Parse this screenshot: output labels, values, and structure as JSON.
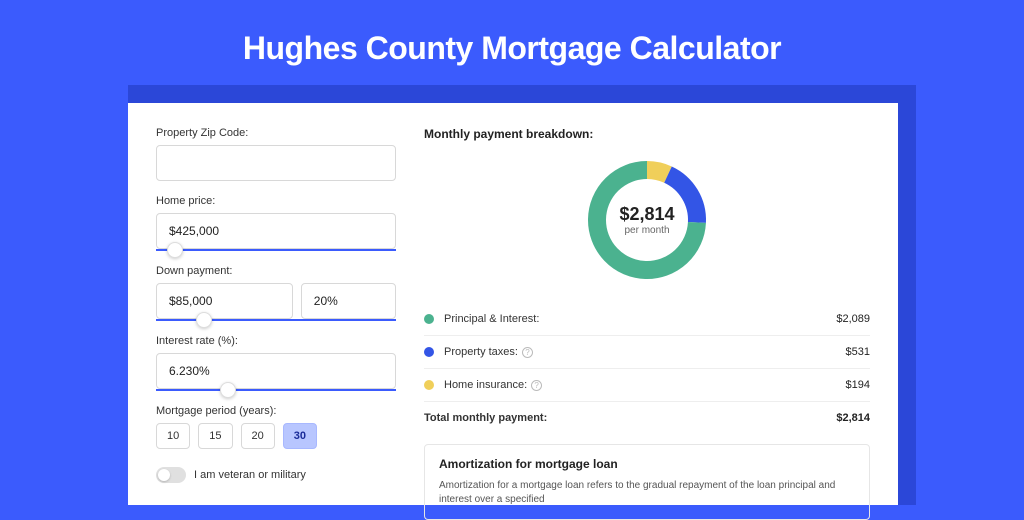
{
  "page": {
    "title": "Hughes County Mortgage Calculator",
    "background_color": "#3b5bfd",
    "shadow_color": "#2b47d8"
  },
  "form": {
    "zip": {
      "label": "Property Zip Code:",
      "value": ""
    },
    "home_price": {
      "label": "Home price:",
      "value": "$425,000",
      "slider_pct": 8
    },
    "down_payment": {
      "label": "Down payment:",
      "amount": "$85,000",
      "percent": "20%",
      "slider_pct": 20
    },
    "interest_rate": {
      "label": "Interest rate (%):",
      "value": "6.230%",
      "slider_pct": 30
    },
    "period": {
      "label": "Mortgage period (years):",
      "options": [
        "10",
        "15",
        "20",
        "30"
      ],
      "selected": "30"
    },
    "veteran": {
      "label": "I am veteran or military",
      "value": false
    }
  },
  "breakdown": {
    "title": "Monthly payment breakdown:",
    "donut": {
      "amount": "$2,814",
      "sub": "per month",
      "slices": [
        {
          "key": "pi",
          "label": "Principal & Interest:",
          "value_text": "$2,089",
          "value": 2089,
          "color": "#4bb28f",
          "has_info": false
        },
        {
          "key": "tax",
          "label": "Property taxes:",
          "value_text": "$531",
          "value": 531,
          "color": "#3355e6",
          "has_info": true
        },
        {
          "key": "ins",
          "label": "Home insurance:",
          "value_text": "$194",
          "value": 194,
          "color": "#f0cf5a",
          "has_info": true
        }
      ],
      "stroke_width": 18
    },
    "total": {
      "label": "Total monthly payment:",
      "value": "$2,814"
    }
  },
  "amortization": {
    "title": "Amortization for mortgage loan",
    "text": "Amortization for a mortgage loan refers to the gradual repayment of the loan principal and interest over a specified"
  }
}
